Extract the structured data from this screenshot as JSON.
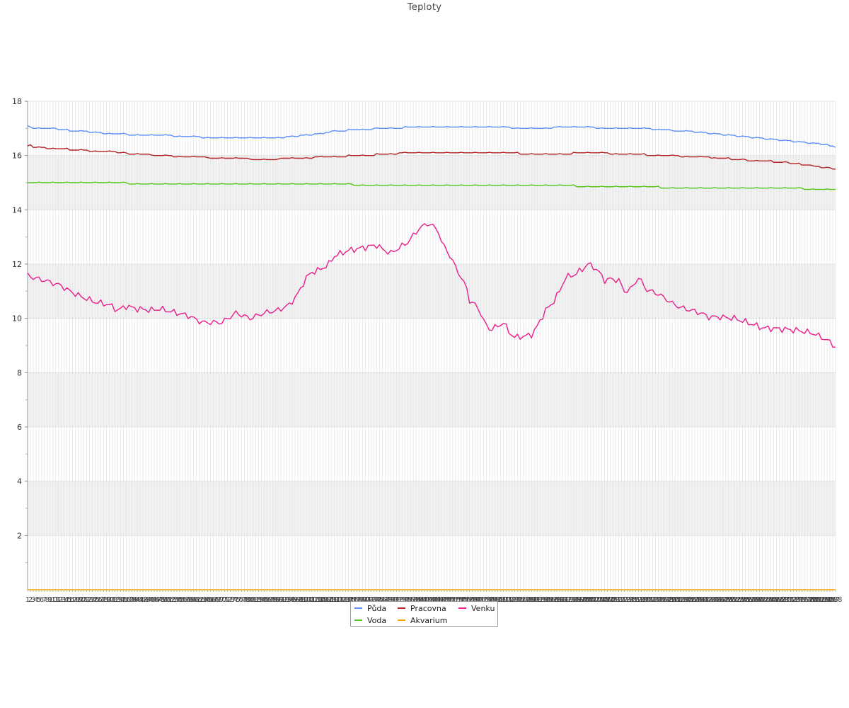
{
  "chart_data": {
    "type": "line",
    "title": "Teploty",
    "ylim": [
      0,
      18
    ],
    "y_ticks": [
      "2",
      "4",
      "6",
      "8",
      "10",
      "12",
      "14",
      "16",
      "18"
    ],
    "grid": true,
    "banded_background": true,
    "legend_position": "bottom",
    "x_count": 288,
    "series": [
      {
        "name": "Půda",
        "color": "#5b8ff9",
        "anchors": [
          [
            1,
            17.1
          ],
          [
            3,
            17.0
          ],
          [
            10,
            17.0
          ],
          [
            12,
            16.95
          ],
          [
            20,
            16.9
          ],
          [
            25,
            16.85
          ],
          [
            30,
            16.8
          ],
          [
            35,
            16.8
          ],
          [
            37,
            16.75
          ],
          [
            48,
            16.75
          ],
          [
            56,
            16.7
          ],
          [
            70,
            16.65
          ],
          [
            90,
            16.65
          ],
          [
            95,
            16.7
          ],
          [
            100,
            16.75
          ],
          [
            105,
            16.8
          ],
          [
            110,
            16.9
          ],
          [
            118,
            16.95
          ],
          [
            130,
            17.0
          ],
          [
            140,
            17.05
          ],
          [
            165,
            17.05
          ],
          [
            180,
            17.0
          ],
          [
            195,
            17.05
          ],
          [
            210,
            17.0
          ],
          [
            220,
            17.0
          ],
          [
            225,
            16.95
          ],
          [
            235,
            16.9
          ],
          [
            245,
            16.8
          ],
          [
            255,
            16.7
          ],
          [
            265,
            16.6
          ],
          [
            280,
            16.45
          ],
          [
            285,
            16.4
          ],
          [
            288,
            16.3
          ]
        ]
      },
      {
        "name": "Pracovna",
        "color": "#b22222",
        "anchors": [
          [
            1,
            16.35
          ],
          [
            2,
            16.4
          ],
          [
            3,
            16.3
          ],
          [
            7,
            16.3
          ],
          [
            8,
            16.25
          ],
          [
            15,
            16.25
          ],
          [
            16,
            16.2
          ],
          [
            22,
            16.2
          ],
          [
            23,
            16.15
          ],
          [
            31,
            16.15
          ],
          [
            33,
            16.1
          ],
          [
            40,
            16.05
          ],
          [
            48,
            16.0
          ],
          [
            56,
            15.95
          ],
          [
            72,
            15.9
          ],
          [
            87,
            15.85
          ],
          [
            95,
            15.9
          ],
          [
            110,
            15.95
          ],
          [
            120,
            16.0
          ],
          [
            130,
            16.05
          ],
          [
            135,
            16.1
          ],
          [
            155,
            16.1
          ],
          [
            170,
            16.1
          ],
          [
            180,
            16.05
          ],
          [
            190,
            16.05
          ],
          [
            200,
            16.1
          ],
          [
            215,
            16.05
          ],
          [
            225,
            16.0
          ],
          [
            240,
            15.95
          ],
          [
            260,
            15.8
          ],
          [
            270,
            15.75
          ],
          [
            288,
            15.5
          ]
        ]
      },
      {
        "name": "Voda",
        "color": "#52c41a",
        "anchors": [
          [
            1,
            15.0
          ],
          [
            36,
            15.0
          ],
          [
            37,
            14.95
          ],
          [
            50,
            14.95
          ],
          [
            60,
            14.95
          ],
          [
            70,
            14.95
          ],
          [
            116,
            14.95
          ],
          [
            117,
            14.9
          ],
          [
            130,
            14.9
          ],
          [
            143,
            14.9
          ],
          [
            180,
            14.9
          ],
          [
            190,
            14.9
          ],
          [
            200,
            14.85
          ],
          [
            220,
            14.85
          ],
          [
            230,
            14.8
          ],
          [
            265,
            14.8
          ],
          [
            266,
            14.8
          ],
          [
            275,
            14.78
          ],
          [
            283,
            14.75
          ],
          [
            288,
            14.75
          ]
        ]
      },
      {
        "name": "Akvarium",
        "color": "#f0a500",
        "anchors": [
          [
            1,
            0.0
          ],
          [
            288,
            0.0
          ]
        ]
      },
      {
        "name": "Venku",
        "color": "#e91e8c",
        "anchors": [
          [
            1,
            11.6
          ],
          [
            3,
            11.5
          ],
          [
            7,
            11.4
          ],
          [
            10,
            11.3
          ],
          [
            13,
            11.2
          ],
          [
            16,
            11.0
          ],
          [
            20,
            10.8
          ],
          [
            25,
            10.6
          ],
          [
            30,
            10.5
          ],
          [
            33,
            10.3
          ],
          [
            36,
            10.45
          ],
          [
            40,
            10.35
          ],
          [
            45,
            10.3
          ],
          [
            48,
            10.35
          ],
          [
            52,
            10.25
          ],
          [
            58,
            10.1
          ],
          [
            60,
            10.0
          ],
          [
            63,
            9.85
          ],
          [
            66,
            9.85
          ],
          [
            70,
            9.85
          ],
          [
            75,
            10.2
          ],
          [
            80,
            10.0
          ],
          [
            85,
            10.2
          ],
          [
            90,
            10.3
          ],
          [
            94,
            10.5
          ],
          [
            97,
            10.9
          ],
          [
            100,
            11.5
          ],
          [
            102,
            11.7
          ],
          [
            105,
            11.8
          ],
          [
            108,
            12.0
          ],
          [
            110,
            12.3
          ],
          [
            115,
            12.5
          ],
          [
            120,
            12.6
          ],
          [
            125,
            12.7
          ],
          [
            127,
            12.55
          ],
          [
            130,
            12.4
          ],
          [
            133,
            12.6
          ],
          [
            136,
            12.8
          ],
          [
            140,
            13.3
          ],
          [
            143,
            13.5
          ],
          [
            145,
            13.4
          ],
          [
            147,
            13.2
          ],
          [
            148,
            12.8
          ],
          [
            150,
            12.5
          ],
          [
            152,
            12.1
          ],
          [
            155,
            11.5
          ],
          [
            157,
            11.1
          ],
          [
            158,
            10.65
          ],
          [
            160,
            10.5
          ],
          [
            162,
            10.2
          ],
          [
            163,
            9.9
          ],
          [
            165,
            9.6
          ],
          [
            168,
            9.7
          ],
          [
            170,
            9.85
          ],
          [
            172,
            9.5
          ],
          [
            174,
            9.3
          ],
          [
            178,
            9.35
          ],
          [
            180,
            9.4
          ],
          [
            182,
            9.7
          ],
          [
            185,
            10.3
          ],
          [
            187,
            10.5
          ],
          [
            190,
            11.0
          ],
          [
            192,
            11.5
          ],
          [
            195,
            11.6
          ],
          [
            198,
            11.8
          ],
          [
            200,
            12.0
          ],
          [
            202,
            11.9
          ],
          [
            204,
            11.7
          ],
          [
            206,
            11.4
          ],
          [
            208,
            11.45
          ],
          [
            211,
            11.4
          ],
          [
            213,
            11.0
          ],
          [
            215,
            11.05
          ],
          [
            218,
            11.5
          ],
          [
            221,
            11.05
          ],
          [
            225,
            10.9
          ],
          [
            228,
            10.7
          ],
          [
            230,
            10.55
          ],
          [
            233,
            10.4
          ],
          [
            240,
            10.2
          ],
          [
            243,
            10.05
          ],
          [
            247,
            10.05
          ],
          [
            252,
            10.0
          ],
          [
            258,
            9.8
          ],
          [
            262,
            9.65
          ],
          [
            270,
            9.6
          ],
          [
            275,
            9.55
          ],
          [
            280,
            9.45
          ],
          [
            285,
            9.2
          ],
          [
            288,
            8.95
          ]
        ]
      }
    ]
  }
}
